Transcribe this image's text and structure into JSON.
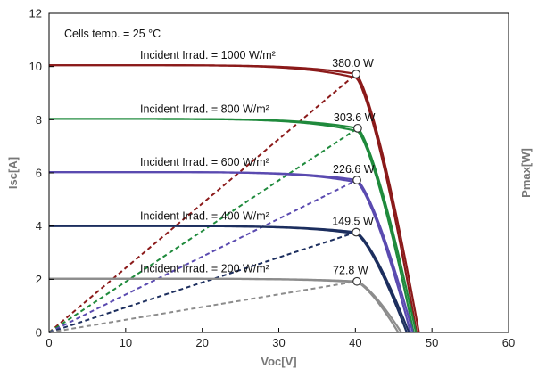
{
  "chart_data": {
    "type": "line",
    "annotation": "Cells temp. = 25 °C",
    "xlabel": "Voc[V]",
    "ylabel": "Isc[A]",
    "ylabel_right": "Pmax[W]",
    "xlim": [
      0,
      60
    ],
    "ylim": [
      0,
      12
    ],
    "x_ticks": [
      "0",
      "10",
      "20",
      "30",
      "40",
      "50",
      "60"
    ],
    "y_ticks": [
      "0",
      "2",
      "4",
      "6",
      "8",
      "10",
      "12"
    ],
    "grid": false,
    "series": [
      {
        "name": "Incident Irrad. = 1000 W/m²",
        "isc": 10.05,
        "mpp_v": 40.1,
        "mpp_i": 9.72,
        "voc": 48.3,
        "voc2": 48.0,
        "pmax_label": "380.0 W",
        "color": "#8b1a1a"
      },
      {
        "name": "Incident Irrad. = 800 W/m²",
        "isc": 8.03,
        "mpp_v": 40.3,
        "mpp_i": 7.68,
        "voc": 47.9,
        "voc2": 47.6,
        "pmax_label": "303.6 W",
        "color": "#1f8a3c"
      },
      {
        "name": "Incident Irrad. = 600 W/m²",
        "isc": 6.03,
        "mpp_v": 40.2,
        "mpp_i": 5.73,
        "voc": 47.5,
        "voc2": 47.2,
        "pmax_label": "226.6 W",
        "color": "#5a4ab0"
      },
      {
        "name": "Incident Irrad. = 400 W/m²",
        "isc": 4.0,
        "mpp_v": 40.1,
        "mpp_i": 3.77,
        "voc": 47.0,
        "voc2": 46.7,
        "pmax_label": "149.5 W",
        "color": "#1c2e5e"
      },
      {
        "name": "Incident Irrad. = 200 W/m²",
        "isc": 2.02,
        "mpp_v": 40.2,
        "mpp_i": 1.92,
        "voc": 46.0,
        "voc2": 45.6,
        "pmax_label": "72.8 W",
        "color": "#8c8c8c"
      }
    ]
  }
}
